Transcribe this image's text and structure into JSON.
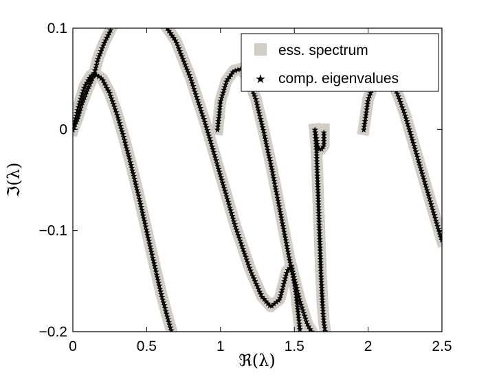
{
  "chart_data": {
    "type": "scatter",
    "title": "",
    "xlabel": "ℜ(λ)",
    "ylabel": "ℑ(λ)",
    "xlim": [
      0,
      2.5
    ],
    "ylim": [
      -0.2,
      0.1
    ],
    "xticks": [
      "0",
      "0.5",
      "1",
      "1.5",
      "2",
      "2.5"
    ],
    "yticks": [
      "−0.2",
      "−0.1",
      "0",
      "0.1"
    ],
    "grid": false,
    "legend_position": "top-right",
    "series": [
      {
        "name": "ess. spectrum",
        "marker": "thick-band",
        "color": "#d2cec7",
        "curves": [
          [
            [
              0.0,
              0.0
            ],
            [
              0.03,
              0.01
            ],
            [
              0.06,
              0.025
            ],
            [
              0.1,
              0.04
            ],
            [
              0.14,
              0.053
            ],
            [
              0.17,
              0.07
            ],
            [
              0.21,
              0.085
            ],
            [
              0.26,
              0.1
            ]
          ],
          [
            [
              0.0,
              0.0
            ],
            [
              0.04,
              0.024
            ],
            [
              0.08,
              0.043
            ],
            [
              0.12,
              0.053
            ],
            [
              0.15,
              0.055
            ],
            [
              0.2,
              0.05
            ],
            [
              0.25,
              0.036
            ],
            [
              0.3,
              0.015
            ],
            [
              0.35,
              -0.01
            ],
            [
              0.4,
              -0.038
            ],
            [
              0.45,
              -0.068
            ],
            [
              0.5,
              -0.1
            ],
            [
              0.55,
              -0.132
            ],
            [
              0.6,
              -0.163
            ],
            [
              0.65,
              -0.19
            ],
            [
              0.67,
              -0.2
            ]
          ],
          [
            [
              0.64,
              0.1
            ],
            [
              0.7,
              0.087
            ],
            [
              0.8,
              0.05
            ],
            [
              0.9,
              0.005
            ],
            [
              1.0,
              -0.045
            ],
            [
              1.1,
              -0.095
            ],
            [
              1.2,
              -0.138
            ],
            [
              1.28,
              -0.165
            ],
            [
              1.34,
              -0.175
            ],
            [
              1.4,
              -0.168
            ],
            [
              1.45,
              -0.14
            ],
            [
              1.48,
              -0.135
            ],
            [
              1.51,
              -0.16
            ],
            [
              1.54,
              -0.2
            ]
          ],
          [
            [
              0.98,
              0.0
            ],
            [
              1.0,
              0.028
            ],
            [
              1.04,
              0.048
            ],
            [
              1.09,
              0.058
            ],
            [
              1.14,
              0.06
            ],
            [
              1.19,
              0.05
            ],
            [
              1.24,
              0.03
            ],
            [
              1.29,
              0.0
            ],
            [
              1.35,
              -0.04
            ],
            [
              1.41,
              -0.085
            ],
            [
              1.47,
              -0.13
            ],
            [
              1.54,
              -0.17
            ],
            [
              1.59,
              -0.193
            ],
            [
              1.62,
              -0.2
            ]
          ],
          [
            [
              1.64,
              0.0
            ],
            [
              1.65,
              -0.02
            ],
            [
              1.66,
              -0.06
            ],
            [
              1.67,
              -0.1
            ],
            [
              1.68,
              -0.14
            ],
            [
              1.69,
              -0.17
            ],
            [
              1.7,
              -0.19
            ],
            [
              1.71,
              -0.2
            ]
          ],
          [
            [
              1.64,
              0.0
            ],
            [
              1.66,
              -0.018
            ],
            [
              1.68,
              -0.02
            ],
            [
              1.7,
              -0.016
            ],
            [
              1.7,
              0.0
            ]
          ],
          [
            [
              1.97,
              0.0
            ],
            [
              2.0,
              0.03
            ],
            [
              2.05,
              0.05
            ],
            [
              2.1,
              0.055
            ],
            [
              2.15,
              0.05
            ],
            [
              2.2,
              0.035
            ],
            [
              2.25,
              0.015
            ],
            [
              2.3,
              -0.01
            ],
            [
              2.35,
              -0.035
            ],
            [
              2.4,
              -0.06
            ],
            [
              2.45,
              -0.085
            ],
            [
              2.5,
              -0.11
            ]
          ]
        ]
      },
      {
        "name": "comp. eigenvalues",
        "marker": "star",
        "color": "#000000",
        "curves": [
          [
            [
              0.0,
              0.0
            ],
            [
              0.03,
              0.01
            ],
            [
              0.06,
              0.025
            ],
            [
              0.1,
              0.04
            ],
            [
              0.14,
              0.053
            ],
            [
              0.17,
              0.07
            ],
            [
              0.21,
              0.085
            ],
            [
              0.26,
              0.1
            ]
          ],
          [
            [
              0.0,
              0.0
            ],
            [
              0.04,
              0.024
            ],
            [
              0.08,
              0.043
            ],
            [
              0.12,
              0.053
            ],
            [
              0.15,
              0.055
            ],
            [
              0.2,
              0.05
            ],
            [
              0.25,
              0.036
            ],
            [
              0.3,
              0.015
            ],
            [
              0.35,
              -0.01
            ],
            [
              0.4,
              -0.038
            ],
            [
              0.45,
              -0.068
            ],
            [
              0.5,
              -0.1
            ],
            [
              0.55,
              -0.132
            ],
            [
              0.6,
              -0.163
            ],
            [
              0.65,
              -0.19
            ],
            [
              0.67,
              -0.2
            ]
          ],
          [
            [
              0.64,
              0.1
            ],
            [
              0.7,
              0.087
            ],
            [
              0.8,
              0.05
            ],
            [
              0.9,
              0.005
            ],
            [
              1.0,
              -0.045
            ],
            [
              1.1,
              -0.095
            ],
            [
              1.2,
              -0.138
            ],
            [
              1.28,
              -0.165
            ],
            [
              1.34,
              -0.175
            ],
            [
              1.4,
              -0.168
            ],
            [
              1.45,
              -0.14
            ],
            [
              1.48,
              -0.135
            ],
            [
              1.51,
              -0.16
            ],
            [
              1.54,
              -0.2
            ]
          ],
          [
            [
              0.98,
              0.0
            ],
            [
              1.0,
              0.028
            ],
            [
              1.04,
              0.048
            ],
            [
              1.09,
              0.058
            ],
            [
              1.14,
              0.06
            ],
            [
              1.19,
              0.05
            ],
            [
              1.24,
              0.03
            ],
            [
              1.29,
              0.0
            ],
            [
              1.35,
              -0.04
            ],
            [
              1.41,
              -0.085
            ],
            [
              1.47,
              -0.13
            ],
            [
              1.54,
              -0.17
            ],
            [
              1.59,
              -0.193
            ],
            [
              1.62,
              -0.2
            ]
          ],
          [
            [
              1.64,
              0.0
            ],
            [
              1.65,
              -0.02
            ],
            [
              1.66,
              -0.06
            ],
            [
              1.67,
              -0.1
            ],
            [
              1.68,
              -0.14
            ],
            [
              1.69,
              -0.17
            ],
            [
              1.7,
              -0.19
            ],
            [
              1.71,
              -0.2
            ]
          ],
          [
            [
              1.64,
              0.0
            ],
            [
              1.66,
              -0.018
            ],
            [
              1.68,
              -0.02
            ],
            [
              1.7,
              -0.016
            ],
            [
              1.7,
              0.0
            ]
          ],
          [
            [
              1.97,
              0.0
            ],
            [
              2.0,
              0.03
            ],
            [
              2.05,
              0.05
            ],
            [
              2.1,
              0.055
            ],
            [
              2.15,
              0.05
            ],
            [
              2.2,
              0.035
            ],
            [
              2.25,
              0.015
            ],
            [
              2.3,
              -0.01
            ],
            [
              2.35,
              -0.035
            ],
            [
              2.4,
              -0.06
            ],
            [
              2.45,
              -0.085
            ],
            [
              2.5,
              -0.11
            ]
          ]
        ]
      }
    ]
  }
}
